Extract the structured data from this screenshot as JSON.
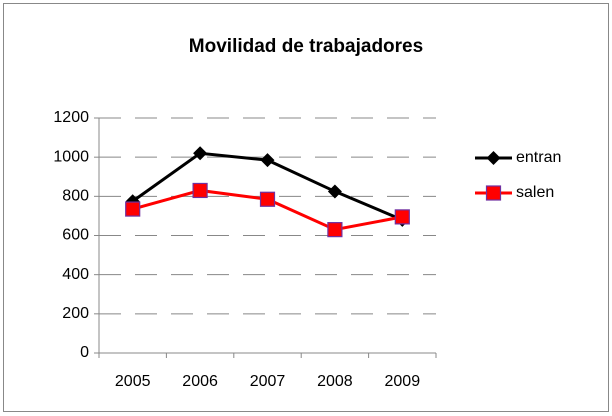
{
  "chart_data": {
    "type": "line",
    "title": "Movilidad de trabajadores",
    "categories": [
      "2005",
      "2006",
      "2007",
      "2008",
      "2009"
    ],
    "series": [
      {
        "name": "entran",
        "color": "#000000",
        "marker": "diamond",
        "values": [
          775,
          1020,
          985,
          825,
          680
        ]
      },
      {
        "name": "salen",
        "color": "#ff0000",
        "marker": "square",
        "values": [
          735,
          830,
          785,
          630,
          695
        ]
      }
    ],
    "ylim": [
      0,
      1200
    ],
    "yticks": [
      0,
      200,
      400,
      600,
      800,
      1000,
      1200
    ],
    "grid": true,
    "legend": "right"
  }
}
